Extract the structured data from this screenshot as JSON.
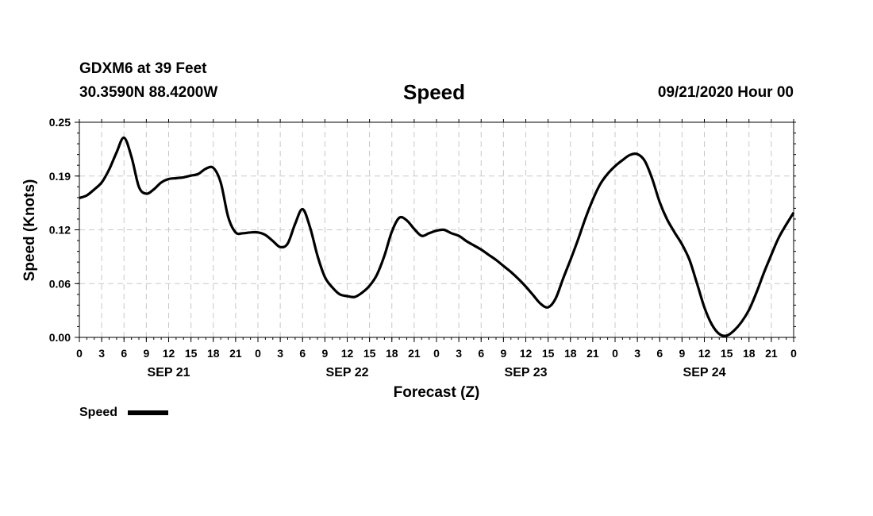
{
  "header": {
    "station_line1": "GDXM6 at 39 Feet",
    "station_line2": "30.3590N 88.4200W",
    "title": "Speed",
    "datetime": "09/21/2020 Hour 00"
  },
  "legend": {
    "label": "Speed",
    "color": "#000000"
  },
  "chart_data": {
    "type": "line",
    "title": "Speed",
    "xlabel": "Forecast (Z)",
    "ylabel": "Speed (Knots)",
    "ylim": [
      0,
      0.25
    ],
    "xlim": [
      0,
      96
    ],
    "x_unit": "forecast hour from 09/21/2020 00Z",
    "y_ticks": [
      "0.00",
      "0.06",
      "0.12",
      "0.19",
      "0.25"
    ],
    "y_tick_values": [
      0,
      0.0625,
      0.125,
      0.1875,
      0.25
    ],
    "x_tick_labels": [
      "0",
      "3",
      "6",
      "9",
      "12",
      "15",
      "18",
      "21",
      "0",
      "3",
      "6",
      "9",
      "12",
      "15",
      "18",
      "21",
      "0",
      "3",
      "6",
      "9",
      "12",
      "15",
      "18",
      "21",
      "0",
      "3",
      "6",
      "9",
      "12",
      "15",
      "18",
      "21",
      "0"
    ],
    "day_labels": [
      "SEP 21",
      "SEP 22",
      "SEP 23",
      "SEP 24"
    ],
    "grid": true,
    "legend_position": "bottom-left",
    "series": [
      {
        "name": "Speed",
        "color": "#000000",
        "x": [
          0,
          1,
          2,
          3,
          4,
          5,
          6,
          7,
          8,
          9,
          10,
          11,
          12,
          13,
          14,
          15,
          16,
          17,
          18,
          19,
          20,
          21,
          22,
          23,
          24,
          25,
          26,
          27,
          28,
          29,
          30,
          31,
          32,
          33,
          34,
          35,
          36,
          37,
          38,
          39,
          40,
          41,
          42,
          43,
          44,
          45,
          46,
          47,
          48,
          49,
          50,
          51,
          52,
          53,
          54,
          55,
          56,
          57,
          58,
          59,
          60,
          61,
          62,
          63,
          64,
          65,
          66,
          67,
          68,
          69,
          70,
          71,
          72,
          73,
          74,
          75,
          76,
          77,
          78,
          79,
          80,
          81,
          82,
          83,
          84,
          85,
          86,
          87,
          88,
          89,
          90,
          91,
          92,
          93,
          94,
          95,
          96
        ],
        "y": [
          0.162,
          0.165,
          0.172,
          0.18,
          0.195,
          0.215,
          0.232,
          0.21,
          0.175,
          0.167,
          0.172,
          0.18,
          0.184,
          0.185,
          0.186,
          0.188,
          0.19,
          0.196,
          0.197,
          0.18,
          0.14,
          0.122,
          0.121,
          0.122,
          0.122,
          0.119,
          0.112,
          0.105,
          0.109,
          0.132,
          0.149,
          0.128,
          0.095,
          0.07,
          0.058,
          0.05,
          0.048,
          0.047,
          0.052,
          0.06,
          0.073,
          0.095,
          0.123,
          0.139,
          0.136,
          0.126,
          0.118,
          0.121,
          0.124,
          0.125,
          0.121,
          0.118,
          0.112,
          0.107,
          0.102,
          0.096,
          0.09,
          0.083,
          0.076,
          0.068,
          0.059,
          0.049,
          0.039,
          0.035,
          0.045,
          0.068,
          0.09,
          0.113,
          0.138,
          0.16,
          0.178,
          0.19,
          0.199,
          0.206,
          0.212,
          0.213,
          0.205,
          0.184,
          0.157,
          0.137,
          0.122,
          0.108,
          0.09,
          0.063,
          0.035,
          0.015,
          0.004,
          0.002,
          0.008,
          0.018,
          0.032,
          0.052,
          0.075,
          0.096,
          0.116,
          0.131,
          0.145
        ]
      }
    ]
  }
}
